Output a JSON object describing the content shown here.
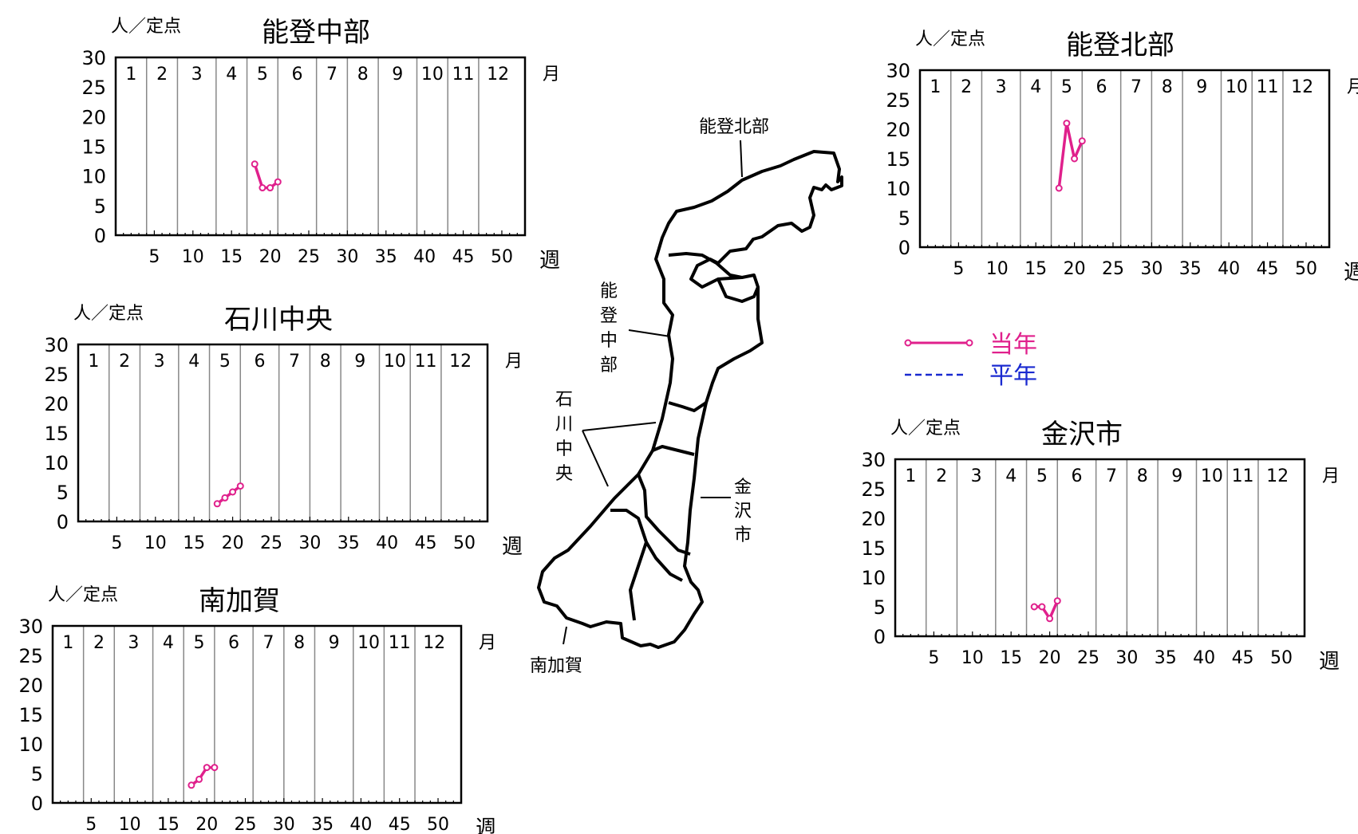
{
  "chart_data": [
    {
      "type": "line",
      "title": "能登中部",
      "unit_label": "人／定点",
      "ylim": [
        0,
        30
      ],
      "yticks": [
        "0",
        "5",
        "10",
        "15",
        "20",
        "25",
        "30"
      ],
      "xlim": [
        0,
        53
      ],
      "xticks": [
        "5",
        "10",
        "15",
        "20",
        "25",
        "30",
        "35",
        "40",
        "45",
        "50"
      ],
      "xlabel": "週",
      "month_label": "月",
      "months": [
        "1",
        "2",
        "3",
        "4",
        "5",
        "6",
        "7",
        "8",
        "9",
        "10",
        "11",
        "12"
      ],
      "grid": "vertical",
      "series": [
        {
          "x": [
            18,
            19,
            20,
            21
          ],
          "y": [
            12,
            8,
            8,
            9
          ]
        }
      ]
    },
    {
      "type": "line",
      "title": "能登北部",
      "unit_label": "人／定点",
      "ylim": [
        0,
        30
      ],
      "yticks": [
        "0",
        "5",
        "10",
        "15",
        "20",
        "25",
        "30"
      ],
      "xlim": [
        0,
        53
      ],
      "xticks": [
        "5",
        "10",
        "15",
        "20",
        "25",
        "30",
        "35",
        "40",
        "45",
        "50"
      ],
      "xlabel": "週",
      "month_label": "月",
      "months": [
        "1",
        "2",
        "3",
        "4",
        "5",
        "6",
        "7",
        "8",
        "9",
        "10",
        "11",
        "12"
      ],
      "grid": "vertical",
      "series": [
        {
          "x": [
            18,
            19,
            20,
            21
          ],
          "y": [
            10,
            21,
            15,
            18
          ]
        }
      ]
    },
    {
      "type": "line",
      "title": "石川中央",
      "unit_label": "人／定点",
      "ylim": [
        0,
        30
      ],
      "yticks": [
        "0",
        "5",
        "10",
        "15",
        "20",
        "25",
        "30"
      ],
      "xlim": [
        0,
        53
      ],
      "xticks": [
        "5",
        "10",
        "15",
        "20",
        "25",
        "30",
        "35",
        "40",
        "45",
        "50"
      ],
      "xlabel": "週",
      "month_label": "月",
      "months": [
        "1",
        "2",
        "3",
        "4",
        "5",
        "6",
        "7",
        "8",
        "9",
        "10",
        "11",
        "12"
      ],
      "grid": "vertical",
      "series": [
        {
          "x": [
            18,
            19,
            20,
            21
          ],
          "y": [
            3,
            4,
            5,
            6
          ]
        }
      ]
    },
    {
      "type": "line",
      "title": "金沢市",
      "unit_label": "人／定点",
      "ylim": [
        0,
        30
      ],
      "yticks": [
        "0",
        "5",
        "10",
        "15",
        "20",
        "25",
        "30"
      ],
      "xlim": [
        0,
        53
      ],
      "xticks": [
        "5",
        "10",
        "15",
        "20",
        "25",
        "30",
        "35",
        "40",
        "45",
        "50"
      ],
      "xlabel": "週",
      "month_label": "月",
      "months": [
        "1",
        "2",
        "3",
        "4",
        "5",
        "6",
        "7",
        "8",
        "9",
        "10",
        "11",
        "12"
      ],
      "grid": "vertical",
      "series": [
        {
          "x": [
            18,
            19,
            20,
            21
          ],
          "y": [
            5,
            5,
            3,
            6
          ]
        }
      ]
    },
    {
      "type": "line",
      "title": "南加賀",
      "unit_label": "人／定点",
      "ylim": [
        0,
        30
      ],
      "yticks": [
        "0",
        "5",
        "10",
        "15",
        "20",
        "25",
        "30"
      ],
      "xlim": [
        0,
        53
      ],
      "xticks": [
        "5",
        "10",
        "15",
        "20",
        "25",
        "30",
        "35",
        "40",
        "45",
        "50"
      ],
      "xlabel": "週",
      "month_label": "月",
      "months": [
        "1",
        "2",
        "3",
        "4",
        "5",
        "6",
        "7",
        "8",
        "9",
        "10",
        "11",
        "12"
      ],
      "grid": "vertical",
      "series": [
        {
          "x": [
            18,
            19,
            20,
            21
          ],
          "y": [
            3,
            4,
            6,
            6
          ]
        }
      ]
    }
  ],
  "legend": {
    "current_label": "当年",
    "average_label": "平年"
  },
  "colors": {
    "current_series": "#e0208c",
    "average_series": "#1a2ad0",
    "grid": "#888888"
  },
  "map": {
    "labels": {
      "noto_hokubu": "能登北部",
      "noto_chubu": [
        "能",
        "登",
        "中",
        "部"
      ],
      "ishikawa_chuo": [
        "石",
        "川",
        "中",
        "央"
      ],
      "kanazawa": [
        "金",
        "沢",
        "市"
      ],
      "minami_kaga": "南加賀"
    }
  }
}
